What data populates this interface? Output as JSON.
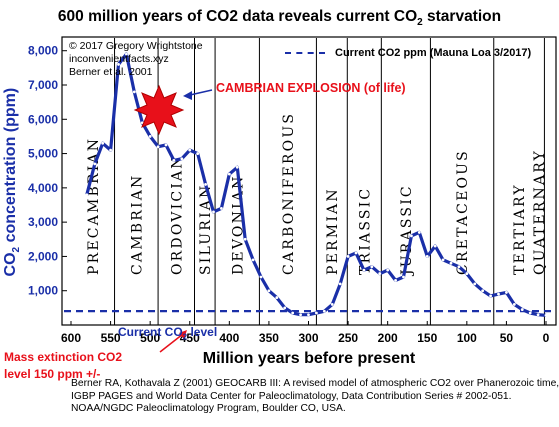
{
  "title": "600 million years of CO2 data reveals current CO",
  "title_sub": "2",
  "title_end": " starvation",
  "credit": [
    "© 2017 Gregory Wrightstone",
    "inconvenientfacts.xyz",
    "Berner et al. 2001"
  ],
  "legend_label": "Current CO2 ppm (Mauna Loa 3/2017)",
  "cambrian_label": "CAMBRIAN EXPLOSION (of life)",
  "current_level_label": "Current CO",
  "current_level_sub": "2",
  "current_level_end": " level",
  "mass_extinction": [
    "Mass extinction CO2",
    "level 150 ppm +/-"
  ],
  "ylabel": "CO",
  "ylabel_sub": "2",
  "ylabel_end": " concentration (ppm)",
  "xlabel": "Million years before present",
  "citation": [
    "Berner RA, Kothavala Z (2001) GEOCARB III: A revised model of atmospheric CO2 over Phanerozoic time,",
    "IGBP PAGES and World Data Center for Paleoclimatology, Data Contribution Series # 2002-051.",
    "NOAA/NGDC Paleoclimatology Program, Boulder CO, USA."
  ],
  "colors": {
    "series": "#1a2fa8",
    "accent": "#e8101a",
    "axis": "#1a2fa8"
  },
  "chart_data": {
    "type": "line",
    "xlabel": "Million years before present",
    "ylabel": "CO2 concentration (ppm)",
    "xlim": [
      600,
      0
    ],
    "ylim": [
      0,
      8400
    ],
    "xticks": [
      600,
      550,
      500,
      450,
      400,
      350,
      300,
      250,
      200,
      150,
      100,
      50,
      0
    ],
    "yticks": [
      1000,
      2000,
      3000,
      4000,
      5000,
      6000,
      7000,
      8000
    ],
    "ytick_labels": [
      "1,000",
      "2,000",
      "3,000",
      "4,000",
      "5,000",
      "6,000",
      "7,000",
      "8,000"
    ],
    "reference_line": {
      "name": "Current CO2 ppm (Mauna Loa 3/2017)",
      "value": 405
    },
    "periods": [
      {
        "name": "PRECAMBRIAN",
        "start": 600,
        "end": 545
      },
      {
        "name": "CAMBRIAN",
        "start": 545,
        "end": 490
      },
      {
        "name": "ORDOVICIAN",
        "start": 490,
        "end": 444
      },
      {
        "name": "SILURIAN",
        "start": 444,
        "end": 418
      },
      {
        "name": "DEVONIAN",
        "start": 418,
        "end": 362
      },
      {
        "name": "CARBONIFEROUS",
        "start": 362,
        "end": 290
      },
      {
        "name": "PERMIAN",
        "start": 290,
        "end": 251
      },
      {
        "name": "TRIASSIC",
        "start": 251,
        "end": 208
      },
      {
        "name": "JURASSIC",
        "start": 208,
        "end": 146
      },
      {
        "name": "CRETACEOUS",
        "start": 146,
        "end": 66
      },
      {
        "name": "TERTIARY",
        "start": 66,
        "end": 2
      },
      {
        "name": "QUATERNARY",
        "start": 2,
        "end": 0
      }
    ],
    "series": [
      {
        "x": [
          580,
          570,
          560,
          550,
          540,
          530,
          520,
          510,
          500,
          490,
          480,
          470,
          460,
          450,
          440,
          430,
          420,
          410,
          400,
          390,
          380,
          370,
          360,
          350,
          340,
          330,
          320,
          310,
          300,
          290,
          280,
          270,
          260,
          250,
          240,
          230,
          220,
          210,
          200,
          190,
          180,
          170,
          160,
          150,
          140,
          130,
          120,
          110,
          100,
          90,
          80,
          70,
          60,
          50,
          40,
          30,
          20,
          10,
          0
        ],
        "y": [
          3800,
          4700,
          5300,
          5100,
          7600,
          7900,
          6800,
          5900,
          5500,
          5200,
          5250,
          4800,
          4850,
          5100,
          5000,
          4100,
          3300,
          3400,
          4400,
          4600,
          2500,
          1900,
          1400,
          1000,
          800,
          500,
          350,
          300,
          300,
          350,
          400,
          600,
          1200,
          2000,
          2100,
          1600,
          1700,
          1500,
          1600,
          1300,
          1400,
          2600,
          2700,
          2000,
          2300,
          1900,
          1800,
          1700,
          1500,
          1200,
          1000,
          850,
          900,
          950,
          600,
          450,
          350,
          300,
          280
        ]
      }
    ]
  }
}
